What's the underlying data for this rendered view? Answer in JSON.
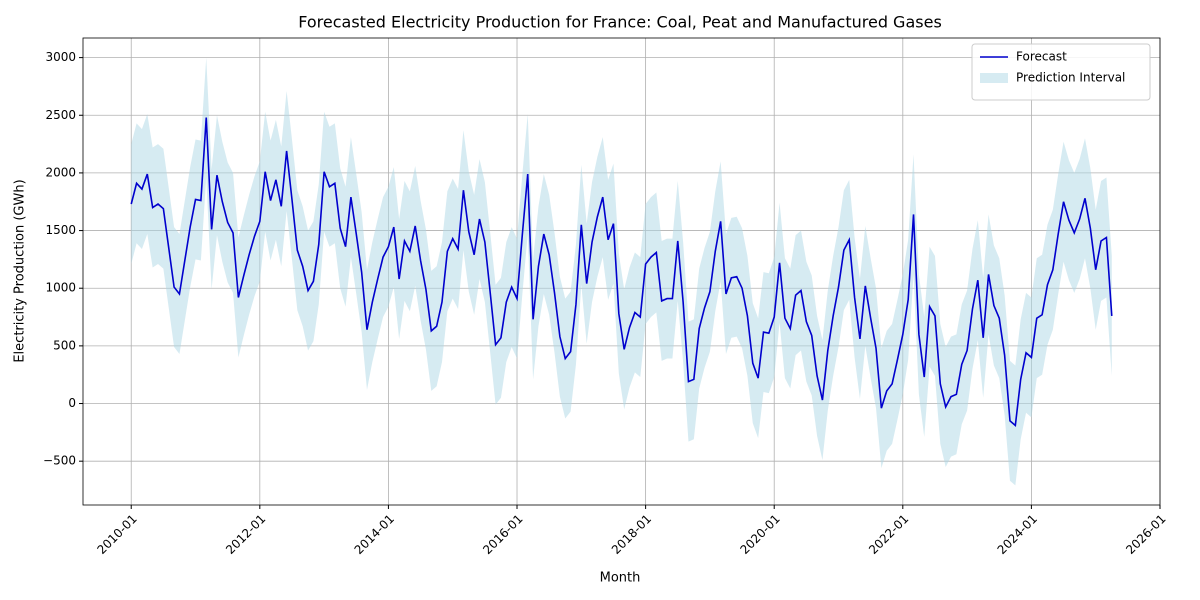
{
  "chart_data": {
    "type": "line",
    "title": "Forecasted Electricity Production for France: Coal, Peat and Manufactured Gases",
    "x_label": "Month",
    "y_label": "Electricity Production (GWh)",
    "x": [
      "2010-01",
      "2010-02",
      "2010-03",
      "2010-04",
      "2010-05",
      "2010-06",
      "2010-07",
      "2010-08",
      "2010-09",
      "2010-10",
      "2010-11",
      "2010-12",
      "2011-01",
      "2011-02",
      "2011-03",
      "2011-04",
      "2011-05",
      "2011-06",
      "2011-07",
      "2011-08",
      "2011-09",
      "2011-10",
      "2011-11",
      "2011-12",
      "2012-01",
      "2012-02",
      "2012-03",
      "2012-04",
      "2012-05",
      "2012-06",
      "2012-07",
      "2012-08",
      "2012-09",
      "2012-10",
      "2012-11",
      "2012-12",
      "2013-01",
      "2013-02",
      "2013-03",
      "2013-04",
      "2013-05",
      "2013-06",
      "2013-07",
      "2013-08",
      "2013-09",
      "2013-10",
      "2013-11",
      "2013-12",
      "2014-01",
      "2014-02",
      "2014-03",
      "2014-04",
      "2014-05",
      "2014-06",
      "2014-07",
      "2014-08",
      "2014-09",
      "2014-10",
      "2014-11",
      "2014-12",
      "2015-01",
      "2015-02",
      "2015-03",
      "2015-04",
      "2015-05",
      "2015-06",
      "2015-07",
      "2015-08",
      "2015-09",
      "2015-10",
      "2015-11",
      "2015-12",
      "2016-01",
      "2016-02",
      "2016-03",
      "2016-04",
      "2016-05",
      "2016-06",
      "2016-07",
      "2016-08",
      "2016-09",
      "2016-10",
      "2016-11",
      "2016-12",
      "2017-01",
      "2017-02",
      "2017-03",
      "2017-04",
      "2017-05",
      "2017-06",
      "2017-07",
      "2017-08",
      "2017-09",
      "2017-10",
      "2017-11",
      "2017-12",
      "2018-01",
      "2018-02",
      "2018-03",
      "2018-04",
      "2018-05",
      "2018-06",
      "2018-07",
      "2018-08",
      "2018-09",
      "2018-10",
      "2018-11",
      "2018-12",
      "2019-01",
      "2019-02",
      "2019-03",
      "2019-04",
      "2019-05",
      "2019-06",
      "2019-07",
      "2019-08",
      "2019-09",
      "2019-10",
      "2019-11",
      "2019-12",
      "2020-01",
      "2020-02",
      "2020-03",
      "2020-04",
      "2020-05",
      "2020-06",
      "2020-07",
      "2020-08",
      "2020-09",
      "2020-10",
      "2020-11",
      "2020-12",
      "2021-01",
      "2021-02",
      "2021-03",
      "2021-04",
      "2021-05",
      "2021-06",
      "2021-07",
      "2021-08",
      "2021-09",
      "2021-10",
      "2021-11",
      "2021-12",
      "2022-01",
      "2022-02",
      "2022-03",
      "2022-04",
      "2022-05",
      "2022-06",
      "2022-07",
      "2022-08",
      "2022-09",
      "2022-10",
      "2022-11",
      "2022-12",
      "2023-01",
      "2023-02",
      "2023-03",
      "2023-04",
      "2023-05",
      "2023-06",
      "2023-07",
      "2023-08",
      "2023-09",
      "2023-10",
      "2023-11",
      "2023-12",
      "2024-01",
      "2024-02",
      "2024-03",
      "2024-04",
      "2024-05",
      "2024-06",
      "2024-07",
      "2024-08",
      "2024-09",
      "2024-10",
      "2024-11",
      "2024-12",
      "2025-01",
      "2025-02",
      "2025-03",
      "2025-04"
    ],
    "series": [
      {
        "name": "Forecast",
        "color": "#0000cd",
        "values": [
          1730,
          1910,
          1860,
          1990,
          1700,
          1730,
          1690,
          1350,
          1010,
          950,
          1240,
          1530,
          1770,
          1760,
          2480,
          1510,
          1980,
          1750,
          1570,
          1480,
          920,
          1110,
          1290,
          1450,
          1580,
          2010,
          1760,
          1940,
          1710,
          2190,
          1770,
          1330,
          1190,
          980,
          1060,
          1380,
          2010,
          1880,
          1910,
          1520,
          1360,
          1790,
          1470,
          1140,
          640,
          880,
          1080,
          1270,
          1360,
          1530,
          1080,
          1410,
          1320,
          1540,
          1240,
          990,
          630,
          670,
          880,
          1320,
          1430,
          1340,
          1850,
          1490,
          1290,
          1600,
          1400,
          960,
          510,
          570,
          880,
          1010,
          910,
          1470,
          1990,
          730,
          1190,
          1470,
          1290,
          960,
          580,
          390,
          450,
          860,
          1550,
          1040,
          1400,
          1620,
          1790,
          1420,
          1560,
          780,
          470,
          660,
          790,
          750,
          1210,
          1270,
          1310,
          890,
          910,
          910,
          1410,
          880,
          190,
          210,
          650,
          830,
          970,
          1320,
          1580,
          950,
          1090,
          1100,
          1000,
          760,
          350,
          220,
          620,
          610,
          750,
          1220,
          740,
          650,
          940,
          980,
          710,
          590,
          240,
          30,
          460,
          760,
          1010,
          1330,
          1420,
          920,
          560,
          1020,
          740,
          480,
          -40,
          110,
          170,
          380,
          600,
          900,
          1640,
          600,
          230,
          840,
          760,
          170,
          -30,
          60,
          80,
          340,
          460,
          820,
          1070,
          570,
          1120,
          850,
          740,
          420,
          -150,
          -190,
          210,
          440,
          400,
          740,
          770,
          1030,
          1160,
          1470,
          1750,
          1590,
          1480,
          1600,
          1780,
          1520,
          1160,
          1410,
          1440,
          760
        ]
      }
    ],
    "interval": {
      "name": "Prediction Interval",
      "color": "#add8e6",
      "lower": [
        1210,
        1390,
        1340,
        1470,
        1180,
        1210,
        1170,
        830,
        490,
        430,
        720,
        1010,
        1250,
        1240,
        1960,
        990,
        1460,
        1230,
        1050,
        960,
        400,
        590,
        770,
        930,
        1060,
        1490,
        1240,
        1420,
        1190,
        1670,
        1250,
        810,
        670,
        460,
        540,
        860,
        1490,
        1360,
        1390,
        1000,
        840,
        1270,
        950,
        620,
        120,
        360,
        560,
        750,
        840,
        1010,
        560,
        890,
        800,
        1020,
        720,
        470,
        110,
        150,
        360,
        800,
        910,
        820,
        1330,
        970,
        770,
        1080,
        880,
        440,
        -10,
        50,
        360,
        490,
        390,
        950,
        1470,
        210,
        670,
        950,
        770,
        440,
        60,
        -130,
        -70,
        340,
        1030,
        520,
        880,
        1100,
        1270,
        900,
        1040,
        260,
        -50,
        140,
        270,
        230,
        690,
        750,
        790,
        370,
        390,
        390,
        890,
        360,
        -330,
        -310,
        130,
        310,
        450,
        800,
        1060,
        430,
        570,
        580,
        480,
        240,
        -170,
        -300,
        100,
        90,
        230,
        700,
        220,
        130,
        420,
        460,
        190,
        70,
        -280,
        -490,
        -60,
        240,
        490,
        810,
        900,
        400,
        40,
        500,
        220,
        -40,
        -560,
        -410,
        -350,
        -140,
        80,
        380,
        1120,
        80,
        -290,
        320,
        240,
        -350,
        -550,
        -460,
        -440,
        -180,
        -60,
        300,
        550,
        50,
        600,
        330,
        220,
        -100,
        -670,
        -710,
        -310,
        -80,
        -120,
        220,
        250,
        510,
        640,
        950,
        1230,
        1070,
        960,
        1080,
        1260,
        1000,
        640,
        890,
        920,
        240
      ],
      "upper": [
        2250,
        2430,
        2380,
        2510,
        2220,
        2250,
        2210,
        1870,
        1530,
        1470,
        1760,
        2050,
        2290,
        2280,
        3000,
        2030,
        2500,
        2270,
        2090,
        2000,
        1440,
        1630,
        1810,
        1970,
        2100,
        2530,
        2280,
        2460,
        2230,
        2710,
        2290,
        1850,
        1710,
        1500,
        1580,
        1900,
        2530,
        2400,
        2430,
        2040,
        1880,
        2310,
        1990,
        1660,
        1160,
        1400,
        1600,
        1790,
        1880,
        2050,
        1600,
        1930,
        1840,
        2060,
        1760,
        1510,
        1150,
        1190,
        1400,
        1840,
        1950,
        1860,
        2370,
        2010,
        1810,
        2120,
        1920,
        1480,
        1030,
        1090,
        1400,
        1530,
        1430,
        1990,
        2510,
        1250,
        1710,
        1990,
        1810,
        1480,
        1100,
        910,
        970,
        1380,
        2070,
        1560,
        1920,
        2140,
        2310,
        1940,
        2080,
        1300,
        990,
        1180,
        1310,
        1270,
        1730,
        1790,
        1830,
        1410,
        1430,
        1430,
        1930,
        1400,
        710,
        730,
        1170,
        1350,
        1490,
        1840,
        2100,
        1470,
        1610,
        1620,
        1520,
        1280,
        870,
        740,
        1140,
        1130,
        1270,
        1740,
        1260,
        1170,
        1460,
        1500,
        1230,
        1110,
        760,
        550,
        980,
        1280,
        1530,
        1850,
        1940,
        1440,
        1080,
        1540,
        1260,
        1000,
        480,
        630,
        690,
        900,
        1120,
        1420,
        2160,
        1120,
        750,
        1360,
        1280,
        690,
        490,
        580,
        600,
        860,
        980,
        1340,
        1590,
        1090,
        1640,
        1370,
        1260,
        940,
        370,
        330,
        730,
        960,
        920,
        1260,
        1290,
        1550,
        1680,
        1990,
        2270,
        2110,
        2000,
        2120,
        2300,
        2040,
        1680,
        1930,
        1960,
        1280
      ]
    },
    "xlim": [
      "2009-04",
      "2026-01"
    ],
    "xticks": [
      "2010-01",
      "2012-01",
      "2014-01",
      "2016-01",
      "2018-01",
      "2020-01",
      "2022-01",
      "2024-01",
      "2026-01"
    ],
    "ylim": [
      -880,
      3170
    ],
    "yticks": [
      {
        "value": -500,
        "label": "−500"
      },
      0,
      500,
      1000,
      1500,
      2000,
      2500,
      3000
    ],
    "grid": true,
    "legend": "upper right"
  }
}
